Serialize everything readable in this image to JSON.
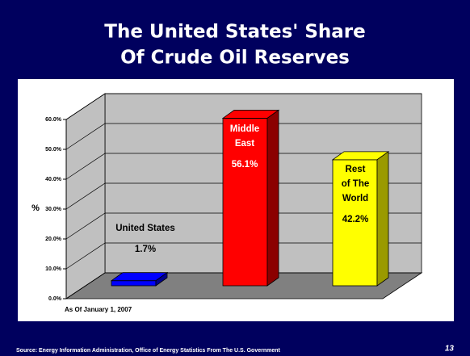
{
  "chart_data": {
    "type": "bar3d",
    "title": [
      "The United States' Share",
      "Of Crude Oil Reserves"
    ],
    "categories": [
      [
        "United States"
      ],
      [
        "Middle",
        "East"
      ],
      [
        "Rest",
        "of The",
        "World"
      ]
    ],
    "values": [
      1.7,
      56.1,
      42.2
    ],
    "value_labels": [
      "1.7%",
      "56.1%",
      "42.2%"
    ],
    "colors": [
      "#0000ff",
      "#ff0000",
      "#ffff00"
    ],
    "side_colors": [
      "#00008b",
      "#8b0000",
      "#9a9a00"
    ],
    "ylabel": "%",
    "ylim": [
      0,
      60
    ],
    "yticks": [
      {
        "value": 0,
        "label": "0.0%"
      },
      {
        "value": 10,
        "label": "10.0%"
      },
      {
        "value": 20,
        "label": "20.0%"
      },
      {
        "value": 30,
        "label": "30.0%"
      },
      {
        "value": 40,
        "label": "40.0%"
      },
      {
        "value": 50,
        "label": "50.0%"
      },
      {
        "value": 60,
        "label": "60.0%"
      }
    ],
    "grid": true,
    "note": "As Of January 1, 2007",
    "source": "Source: Energy Information Administration, Office of Energy Statistics From The U.S. Government",
    "page_number": "13"
  }
}
